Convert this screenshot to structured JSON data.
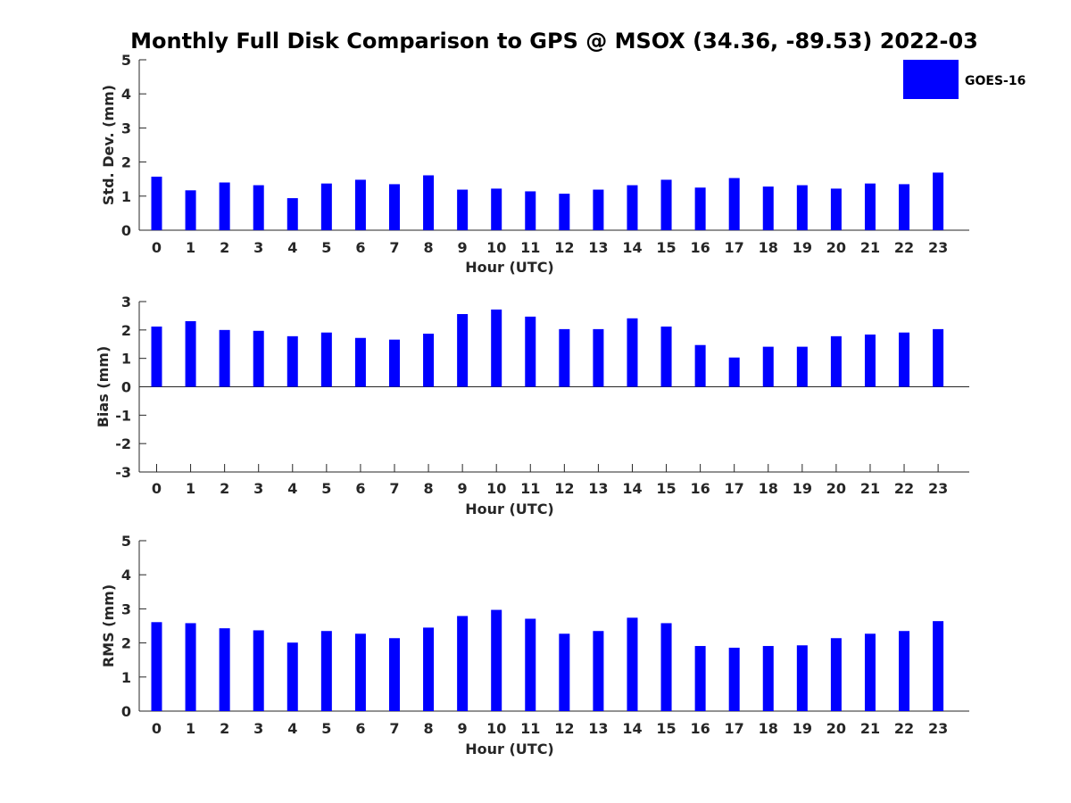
{
  "title": "Monthly Full Disk Comparison to GPS @ MSOX (34.36, -89.53) 2022-03",
  "legend": {
    "label": "GOES-16",
    "color": "#0000ff"
  },
  "chart_data": [
    {
      "type": "bar",
      "name": "std",
      "ylabel": "Std. Dev. (mm)",
      "xlabel": "Hour (UTC)",
      "ylim": [
        0,
        5
      ],
      "yticks": [
        "0",
        "1",
        "2",
        "3",
        "4",
        "5"
      ],
      "categories": [
        "0",
        "1",
        "2",
        "3",
        "4",
        "5",
        "6",
        "7",
        "8",
        "9",
        "10",
        "11",
        "12",
        "13",
        "14",
        "15",
        "16",
        "17",
        "18",
        "19",
        "20",
        "21",
        "22",
        "23"
      ],
      "series": [
        {
          "name": "GOES-16",
          "color": "#0000ff",
          "values": [
            1.57,
            1.17,
            1.4,
            1.32,
            0.94,
            1.37,
            1.48,
            1.35,
            1.61,
            1.19,
            1.22,
            1.14,
            1.07,
            1.19,
            1.32,
            1.48,
            1.25,
            1.53,
            1.28,
            1.32,
            1.22,
            1.37,
            1.35,
            1.69
          ]
        }
      ]
    },
    {
      "type": "bar",
      "name": "bias",
      "ylabel": "Bias (mm)",
      "xlabel": "Hour (UTC)",
      "ylim": [
        -3,
        3
      ],
      "yticks": [
        "-3",
        "-2",
        "-1",
        "0",
        "1",
        "2",
        "3"
      ],
      "categories": [
        "0",
        "1",
        "2",
        "3",
        "4",
        "5",
        "6",
        "7",
        "8",
        "9",
        "10",
        "11",
        "12",
        "13",
        "14",
        "15",
        "16",
        "17",
        "18",
        "19",
        "20",
        "21",
        "22",
        "23"
      ],
      "series": [
        {
          "name": "GOES-16",
          "color": "#0000ff",
          "values": [
            2.12,
            2.31,
            2.0,
            1.97,
            1.78,
            1.91,
            1.72,
            1.66,
            1.87,
            2.56,
            2.72,
            2.47,
            2.03,
            2.03,
            2.41,
            2.12,
            1.47,
            1.03,
            1.41,
            1.41,
            1.78,
            1.84,
            1.91,
            2.03
          ]
        }
      ]
    },
    {
      "type": "bar",
      "name": "rms",
      "ylabel": "RMS (mm)",
      "xlabel": "Hour (UTC)",
      "ylim": [
        0,
        5
      ],
      "yticks": [
        "0",
        "1",
        "2",
        "3",
        "4",
        "5"
      ],
      "categories": [
        "0",
        "1",
        "2",
        "3",
        "4",
        "5",
        "6",
        "7",
        "8",
        "9",
        "10",
        "11",
        "12",
        "13",
        "14",
        "15",
        "16",
        "17",
        "18",
        "19",
        "20",
        "21",
        "22",
        "23"
      ],
      "series": [
        {
          "name": "GOES-16",
          "color": "#0000ff",
          "values": [
            2.61,
            2.58,
            2.43,
            2.37,
            2.01,
            2.35,
            2.27,
            2.14,
            2.45,
            2.79,
            2.97,
            2.71,
            2.27,
            2.35,
            2.74,
            2.58,
            1.91,
            1.86,
            1.91,
            1.93,
            2.14,
            2.27,
            2.35,
            2.64
          ]
        }
      ]
    }
  ]
}
